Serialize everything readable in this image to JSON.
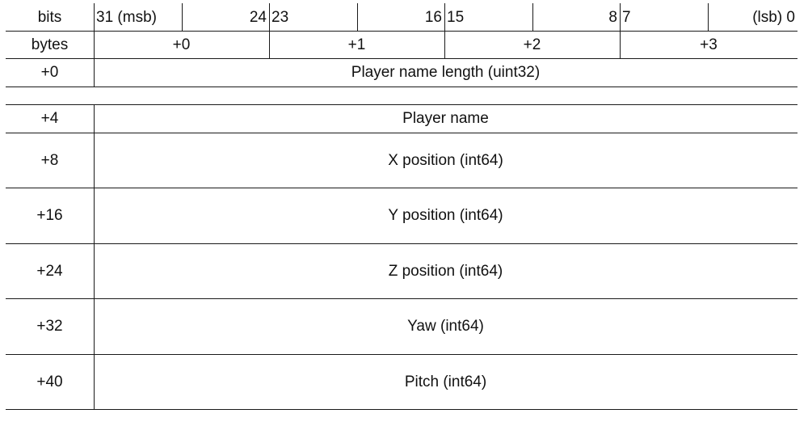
{
  "header": {
    "bits_label": "bits",
    "bytes_label": "bytes",
    "bit_marks": {
      "b31": "31 (msb)",
      "b24": "24",
      "b23": "23",
      "b16": "16",
      "b15": "15",
      "b8": "8",
      "b7": "7",
      "b0": "(lsb) 0"
    },
    "byte_offsets": [
      "+0",
      "+1",
      "+2",
      "+3"
    ]
  },
  "rows": [
    {
      "offset": "+0",
      "field": "Player name length (uint32)"
    },
    {
      "offset": "+4",
      "field": "Player name"
    },
    {
      "offset": "+8",
      "field": "X position (int64)"
    },
    {
      "offset": "+16",
      "field": "Y position (int64)"
    },
    {
      "offset": "+24",
      "field": "Z position (int64)"
    },
    {
      "offset": "+32",
      "field": "Yaw (int64)"
    },
    {
      "offset": "+40",
      "field": "Pitch (int64)"
    }
  ]
}
